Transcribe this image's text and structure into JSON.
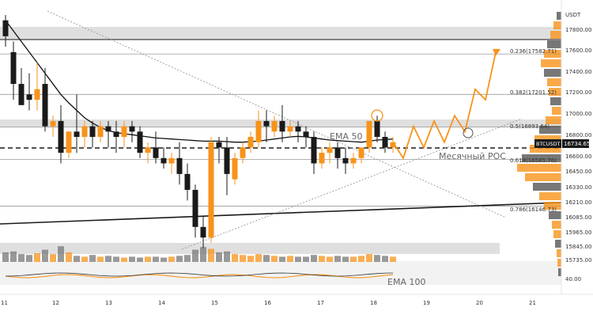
{
  "chart_data": {
    "type": "candlestick",
    "symbol": "BTCUSDT",
    "currency": "USDT",
    "last_price": "16734.65",
    "colors": {
      "up": "#f7931a",
      "down": "#1a1a1a",
      "band": "#d9d9d9",
      "projection": "#f7931a"
    },
    "y_ticks": [
      "17800.00",
      "17600.00",
      "17400.00",
      "17200.00",
      "17000.00",
      "16800.00",
      "16600.00",
      "16450.00",
      "16330.00",
      "16210.00",
      "16085.00",
      "15965.00",
      "15845.00",
      "15735.00"
    ],
    "x_ticks": [
      "11",
      "12",
      "13",
      "14",
      "15",
      "16",
      "17",
      "18",
      "19",
      "20",
      "21"
    ],
    "osc_tick": "40.00",
    "labels": {
      "ema50": "EMA 50",
      "poc": "Месячный POC",
      "ema100": "EMA 100"
    },
    "fib_levels": [
      {
        "label": "0.236(17582.71)",
        "price": 17582.71
      },
      {
        "label": "0.382(17201.52)",
        "price": 17201.52
      },
      {
        "label": "0.5(16893.64)",
        "price": 16893.64
      },
      {
        "label": "0.618(16585.76)",
        "price": 16585.76
      },
      {
        "label": "0.786(16146.73)",
        "price": 16146.73
      }
    ],
    "candles": [
      [
        17900,
        17950,
        17750,
        17650
      ],
      [
        17600,
        17700,
        17300,
        17150
      ],
      [
        17300,
        17450,
        17100,
        17100
      ],
      [
        17200,
        17400,
        17150,
        17050
      ],
      [
        17150,
        17500,
        17250,
        17050
      ],
      [
        17300,
        17450,
        16900,
        16850
      ],
      [
        16900,
        17000,
        16950,
        16800
      ],
      [
        16950,
        17100,
        16650,
        16550
      ],
      [
        16650,
        16850,
        16850,
        16600
      ],
      [
        16850,
        17200,
        16800,
        16650
      ],
      [
        16800,
        16950,
        16900,
        16700
      ],
      [
        16900,
        16950,
        16800,
        16700
      ],
      [
        16800,
        16950,
        16900,
        16750
      ],
      [
        16900,
        16950,
        16850,
        16700
      ],
      [
        16850,
        16950,
        16800,
        16650
      ],
      [
        16800,
        16950,
        16900,
        16700
      ],
      [
        16900,
        16950,
        16850,
        16750
      ],
      [
        16850,
        16900,
        16650,
        16600
      ],
      [
        16650,
        16750,
        16700,
        16550
      ],
      [
        16700,
        16850,
        16600,
        16550
      ],
      [
        16600,
        16700,
        16550,
        16500
      ],
      [
        16550,
        16650,
        16600,
        16450
      ],
      [
        16600,
        16750,
        16450,
        16350
      ],
      [
        16450,
        16550,
        16300,
        16200
      ],
      [
        16300,
        16350,
        15950,
        15850
      ],
      [
        15950,
        16050,
        15850,
        15750
      ],
      [
        15850,
        16800,
        16750,
        15800
      ],
      [
        16750,
        16800,
        16700,
        16550
      ],
      [
        16700,
        16800,
        16450,
        16250
      ],
      [
        16400,
        16650,
        16600,
        16350
      ],
      [
        16600,
        16750,
        16700,
        16550
      ],
      [
        16700,
        16850,
        16800,
        16650
      ],
      [
        16750,
        17050,
        16950,
        16700
      ],
      [
        16950,
        17050,
        16900,
        16750
      ],
      [
        16850,
        17000,
        16950,
        16800
      ],
      [
        16950,
        17100,
        16850,
        16750
      ],
      [
        16850,
        16950,
        16900,
        16800
      ],
      [
        16900,
        16950,
        16850,
        16750
      ],
      [
        16850,
        16900,
        16800,
        16700
      ],
      [
        16800,
        16850,
        16550,
        16450
      ],
      [
        16550,
        16700,
        16650,
        16500
      ],
      [
        16650,
        16750,
        16700,
        16550
      ],
      [
        16700,
        16750,
        16600,
        16500
      ],
      [
        16600,
        16700,
        16550,
        16450
      ],
      [
        16550,
        16650,
        16600,
        16500
      ],
      [
        16600,
        16650,
        16700,
        16550
      ],
      [
        16700,
        16950,
        16950,
        16650
      ],
      [
        16950,
        17000,
        16800,
        16750
      ],
      [
        16800,
        16850,
        16700,
        16650
      ],
      [
        16700,
        16800,
        16750,
        16650
      ]
    ],
    "volumes": [
      0.55,
      0.6,
      0.45,
      0.4,
      0.5,
      0.7,
      0.45,
      0.9,
      0.55,
      0.35,
      0.3,
      0.4,
      0.3,
      0.35,
      0.3,
      0.25,
      0.3,
      0.25,
      0.3,
      0.3,
      0.25,
      0.3,
      0.35,
      0.4,
      0.7,
      0.85,
      0.75,
      0.55,
      0.6,
      0.45,
      0.4,
      0.35,
      0.45,
      0.4,
      0.35,
      0.3,
      0.35,
      0.3,
      0.3,
      0.4,
      0.35,
      0.3,
      0.35,
      0.3,
      0.3,
      0.35,
      0.45,
      0.4,
      0.35,
      0.3
    ],
    "ema50": [
      17900,
      17800,
      17700,
      17600,
      17500,
      17400,
      17300,
      17200,
      17120,
      17050,
      16980,
      16930,
      16890,
      16860,
      16840,
      16830,
      16820,
      16810,
      16800,
      16790,
      16785,
      16780,
      16775,
      16770,
      16765,
      16760,
      16760,
      16760,
      16755,
      16750,
      16750,
      16755,
      16760,
      16770,
      16780,
      16790,
      16800,
      16805,
      16800,
      16790,
      16780,
      16770,
      16765,
      16760,
      16755,
      16750,
      16760,
      16770,
      16775,
      16780
    ],
    "projection": [
      16750,
      16600,
      16900,
      16700,
      16950,
      16750,
      17000,
      16850,
      17250,
      17150,
      17600
    ]
  }
}
